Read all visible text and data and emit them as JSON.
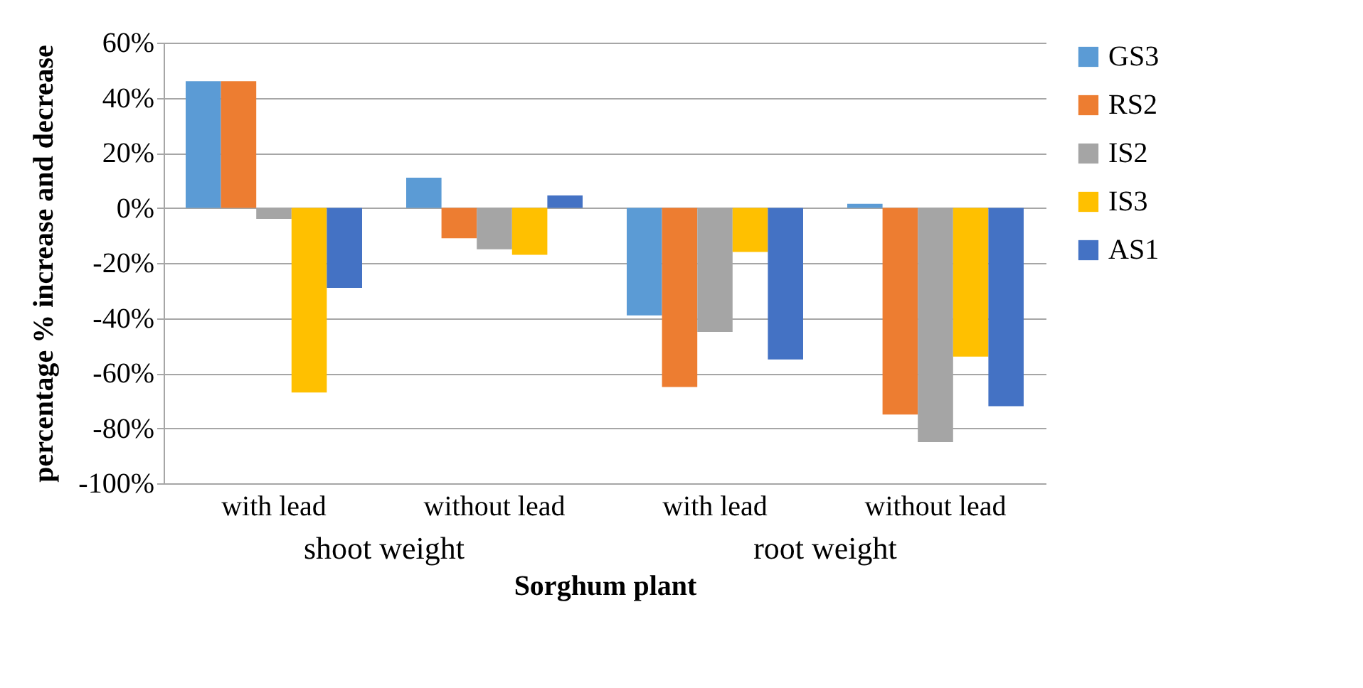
{
  "chart_data": {
    "type": "bar",
    "xlabel": "Sorghum plant",
    "ylabel": "percentage % increase and decrease",
    "categories": [
      "with lead",
      "without lead",
      "with lead",
      "without lead"
    ],
    "annotations": [
      "shoot weight",
      "root weight"
    ],
    "series": [
      {
        "name": "GS3",
        "color": "#5b9bd5",
        "values": [
          46,
          11,
          -39,
          1.5
        ]
      },
      {
        "name": "RS2",
        "color": "#ed7d31",
        "values": [
          46,
          -11,
          -65,
          -75
        ]
      },
      {
        "name": "IS2",
        "color": "#a5a5a5",
        "values": [
          -4,
          -15,
          -45,
          -85
        ]
      },
      {
        "name": "IS3",
        "color": "#ffc000",
        "values": [
          -67,
          -17,
          -16,
          -54
        ]
      },
      {
        "name": "AS1",
        "color": "#4472c4",
        "values": [
          -29,
          4.5,
          -55,
          -72
        ]
      }
    ],
    "ylim": [
      -100,
      60
    ],
    "yticks": [
      {
        "value": -100,
        "label": "-100%"
      },
      {
        "value": -80,
        "label": "-80%"
      },
      {
        "value": -60,
        "label": "-60%"
      },
      {
        "value": -40,
        "label": "-40%"
      },
      {
        "value": -20,
        "label": "-20%"
      },
      {
        "value": 0,
        "label": "0%"
      },
      {
        "value": 20,
        "label": "20%"
      },
      {
        "value": 40,
        "label": "40%"
      },
      {
        "value": 60,
        "label": "60%"
      }
    ],
    "grid": "y",
    "legend": "right"
  }
}
